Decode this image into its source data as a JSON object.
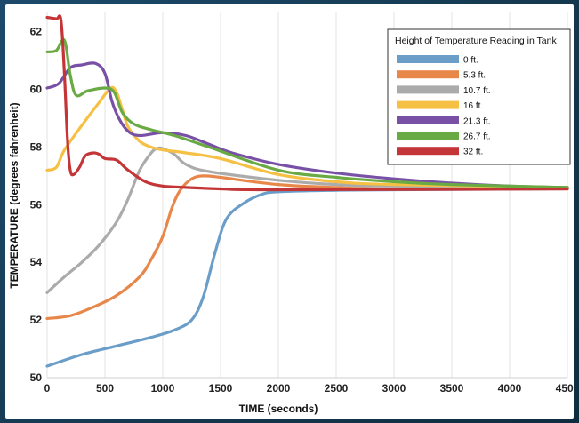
{
  "chart_data": {
    "type": "line",
    "title": "",
    "xlabel": "TIME (seconds)",
    "ylabel": "TEMPERATURE (degrees fahrenheit)",
    "xlim": [
      0,
      4500
    ],
    "ylim": [
      50,
      62.7
    ],
    "xticks": [
      0,
      500,
      1000,
      1500,
      2000,
      2500,
      3000,
      3500,
      4000,
      4500
    ],
    "yticks": [
      50,
      52,
      54,
      56,
      58,
      60,
      62
    ],
    "grid": "vertical",
    "legend": {
      "title": "Height of Temperature Reading in Tank",
      "placement": "top-right"
    },
    "series": [
      {
        "name": "0 ft.",
        "color": "#6a9ec9",
        "points": [
          [
            0,
            50.4
          ],
          [
            300,
            50.8
          ],
          [
            600,
            51.1
          ],
          [
            900,
            51.4
          ],
          [
            1100,
            51.65
          ],
          [
            1250,
            52.0
          ],
          [
            1350,
            52.8
          ],
          [
            1450,
            54.3
          ],
          [
            1550,
            55.5
          ],
          [
            1700,
            56.05
          ],
          [
            1850,
            56.35
          ],
          [
            2000,
            56.45
          ],
          [
            2500,
            56.5
          ],
          [
            3000,
            56.52
          ],
          [
            4500,
            56.55
          ]
        ]
      },
      {
        "name": "5.3 ft.",
        "color": "#e8874a",
        "points": [
          [
            0,
            52.05
          ],
          [
            200,
            52.15
          ],
          [
            400,
            52.45
          ],
          [
            600,
            52.85
          ],
          [
            800,
            53.5
          ],
          [
            900,
            54.1
          ],
          [
            1000,
            54.9
          ],
          [
            1080,
            55.9
          ],
          [
            1150,
            56.5
          ],
          [
            1250,
            56.9
          ],
          [
            1350,
            57.0
          ],
          [
            1500,
            56.95
          ],
          [
            2000,
            56.7
          ],
          [
            2500,
            56.6
          ],
          [
            3000,
            56.55
          ],
          [
            4500,
            56.55
          ]
        ]
      },
      {
        "name": "10.7 ft.",
        "color": "#ababab",
        "points": [
          [
            0,
            52.95
          ],
          [
            150,
            53.5
          ],
          [
            300,
            54.0
          ],
          [
            450,
            54.6
          ],
          [
            600,
            55.4
          ],
          [
            700,
            56.2
          ],
          [
            800,
            57.2
          ],
          [
            900,
            57.8
          ],
          [
            950,
            57.95
          ],
          [
            1000,
            57.95
          ],
          [
            1100,
            57.75
          ],
          [
            1200,
            57.4
          ],
          [
            1400,
            57.15
          ],
          [
            2000,
            56.85
          ],
          [
            2500,
            56.7
          ],
          [
            3000,
            56.65
          ],
          [
            4500,
            56.6
          ]
        ]
      },
      {
        "name": "16 ft.",
        "color": "#f5c043",
        "points": [
          [
            0,
            57.2
          ],
          [
            80,
            57.3
          ],
          [
            150,
            57.9
          ],
          [
            300,
            58.75
          ],
          [
            450,
            59.55
          ],
          [
            550,
            60.05
          ],
          [
            600,
            59.9
          ],
          [
            650,
            59.3
          ],
          [
            700,
            58.7
          ],
          [
            800,
            58.2
          ],
          [
            900,
            58.0
          ],
          [
            1000,
            57.9
          ],
          [
            1200,
            57.8
          ],
          [
            1500,
            57.6
          ],
          [
            2000,
            57.05
          ],
          [
            2500,
            56.8
          ],
          [
            3000,
            56.7
          ],
          [
            4500,
            56.6
          ]
        ]
      },
      {
        "name": "21.3 ft.",
        "color": "#7850a6",
        "points": [
          [
            0,
            60.05
          ],
          [
            100,
            60.2
          ],
          [
            200,
            60.75
          ],
          [
            300,
            60.85
          ],
          [
            420,
            60.9
          ],
          [
            500,
            60.55
          ],
          [
            560,
            59.6
          ],
          [
            620,
            59.0
          ],
          [
            700,
            58.55
          ],
          [
            800,
            58.4
          ],
          [
            1000,
            58.5
          ],
          [
            1200,
            58.4
          ],
          [
            1400,
            58.1
          ],
          [
            1600,
            57.8
          ],
          [
            2000,
            57.4
          ],
          [
            2500,
            57.1
          ],
          [
            3000,
            56.9
          ],
          [
            3500,
            56.75
          ],
          [
            4000,
            56.65
          ],
          [
            4500,
            56.6
          ]
        ]
      },
      {
        "name": "26.7 ft.",
        "color": "#6aaa44",
        "points": [
          [
            0,
            61.3
          ],
          [
            80,
            61.35
          ],
          [
            150,
            61.7
          ],
          [
            200,
            60.5
          ],
          [
            250,
            59.8
          ],
          [
            350,
            59.95
          ],
          [
            500,
            60.05
          ],
          [
            580,
            59.9
          ],
          [
            650,
            59.2
          ],
          [
            750,
            58.8
          ],
          [
            900,
            58.6
          ],
          [
            1100,
            58.4
          ],
          [
            1400,
            58.0
          ],
          [
            2000,
            57.2
          ],
          [
            2500,
            56.95
          ],
          [
            3000,
            56.8
          ],
          [
            3500,
            56.7
          ],
          [
            4500,
            56.6
          ]
        ]
      },
      {
        "name": "32 ft.",
        "color": "#c43538",
        "points": [
          [
            0,
            62.5
          ],
          [
            80,
            62.45
          ],
          [
            120,
            62.4
          ],
          [
            150,
            60.5
          ],
          [
            175,
            58.3
          ],
          [
            200,
            57.2
          ],
          [
            230,
            57.05
          ],
          [
            280,
            57.3
          ],
          [
            330,
            57.7
          ],
          [
            400,
            57.8
          ],
          [
            450,
            57.75
          ],
          [
            500,
            57.6
          ],
          [
            600,
            57.55
          ],
          [
            700,
            57.2
          ],
          [
            850,
            56.8
          ],
          [
            1000,
            56.65
          ],
          [
            1200,
            56.6
          ],
          [
            1500,
            56.55
          ],
          [
            2000,
            56.52
          ],
          [
            4500,
            56.55
          ]
        ]
      }
    ]
  }
}
